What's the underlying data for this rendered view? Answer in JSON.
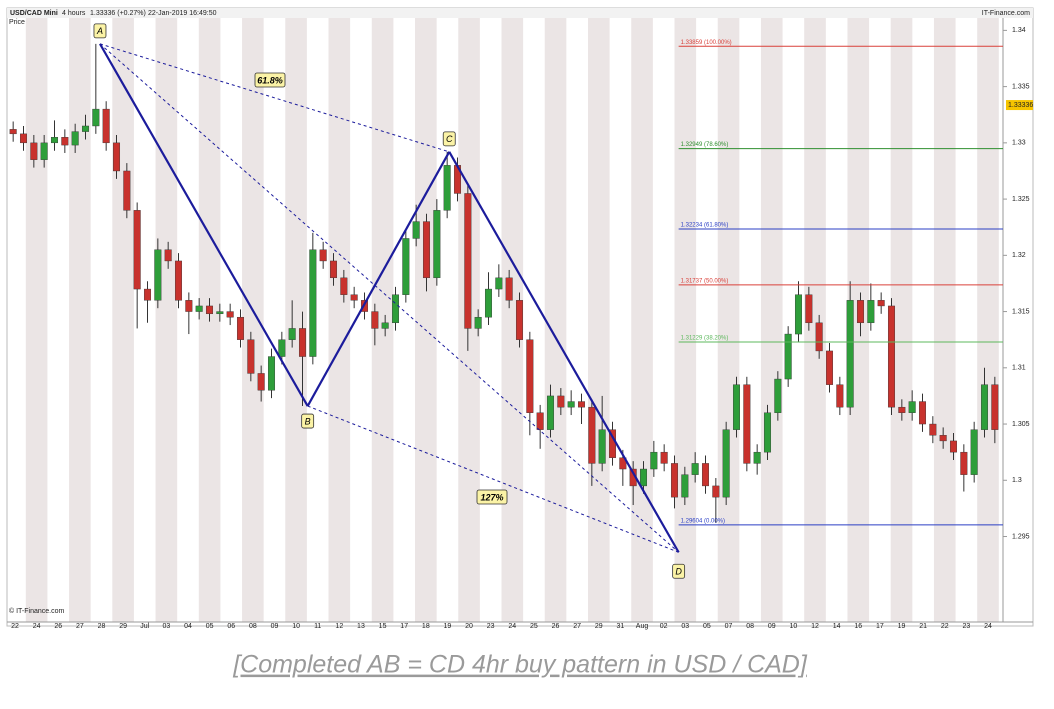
{
  "chart_data": {
    "type": "candlestick",
    "symbol": "USD/CAD Mini",
    "timeframe": "4 hours",
    "quote": "1.33336 (+0.27%)",
    "timestamp": "22-Jan-2019 16:49:50",
    "brand": "IT-Finance.com",
    "axis_title": "Price",
    "copyright": "© IT-Finance.com",
    "up_color": "#2e9e3a",
    "down_color": "#c8322d",
    "ylim": [
      1.2874,
      1.3411
    ],
    "yticks": [
      1.295,
      1.3,
      1.305,
      1.31,
      1.315,
      1.32,
      1.325,
      1.33,
      1.335,
      1.34
    ],
    "last_price": 1.33336,
    "xtick_labels": [
      "22",
      "24",
      "26",
      "27",
      "28",
      "29",
      "Jul",
      "03",
      "04",
      "05",
      "06",
      "08",
      "09",
      "10",
      "11",
      "12",
      "13",
      "15",
      "17",
      "18",
      "19",
      "20",
      "23",
      "24",
      "25",
      "26",
      "27",
      "29",
      "31",
      "Aug",
      "02",
      "03",
      "05",
      "07",
      "08",
      "09",
      "10",
      "12",
      "14",
      "16",
      "17",
      "19",
      "21",
      "22",
      "23",
      "24"
    ],
    "candles": {
      "open": [
        1.3312,
        1.3308,
        1.33,
        1.3285,
        1.33,
        1.3305,
        1.3298,
        1.331,
        1.3315,
        1.333,
        1.33,
        1.3275,
        1.324,
        1.317,
        1.316,
        1.3205,
        1.3195,
        1.316,
        1.315,
        1.3155,
        1.3148,
        1.315,
        1.3145,
        1.3125,
        1.3095,
        1.308,
        1.311,
        1.3125,
        1.3135,
        1.311,
        1.3205,
        1.3195,
        1.318,
        1.3165,
        1.316,
        1.315,
        1.3135,
        1.314,
        1.3165,
        1.3215,
        1.323,
        1.318,
        1.324,
        1.328,
        1.3255,
        1.3135,
        1.3145,
        1.317,
        1.318,
        1.316,
        1.3125,
        1.306,
        1.3045,
        1.3075,
        1.3065,
        1.307,
        1.3065,
        1.3015,
        1.3045,
        1.302,
        1.301,
        1.2995,
        1.301,
        1.3025,
        1.3015,
        1.2985,
        1.3005,
        1.3015,
        1.2995,
        1.2985,
        1.3045,
        1.3085,
        1.3015,
        1.3025,
        1.306,
        1.309,
        1.313,
        1.3165,
        1.314,
        1.3115,
        1.3085,
        1.3065,
        1.316,
        1.314,
        1.316,
        1.3155,
        1.3065,
        1.306,
        1.307,
        1.305,
        1.304,
        1.3035,
        1.3025,
        1.3005,
        1.3045,
        1.3085
      ],
      "high": [
        1.3319,
        1.3315,
        1.3307,
        1.3307,
        1.332,
        1.3312,
        1.3317,
        1.3325,
        1.3388,
        1.3337,
        1.3307,
        1.3282,
        1.3247,
        1.3177,
        1.3215,
        1.3212,
        1.3202,
        1.3167,
        1.3162,
        1.3162,
        1.3157,
        1.3157,
        1.3152,
        1.3132,
        1.3102,
        1.3117,
        1.3132,
        1.316,
        1.315,
        1.322,
        1.3212,
        1.3202,
        1.3187,
        1.3172,
        1.3167,
        1.3157,
        1.3147,
        1.3172,
        1.3222,
        1.3245,
        1.3237,
        1.325,
        1.3292,
        1.3287,
        1.3262,
        1.3152,
        1.3185,
        1.3192,
        1.3187,
        1.3167,
        1.3132,
        1.3067,
        1.3085,
        1.3082,
        1.308,
        1.3077,
        1.3072,
        1.3075,
        1.3052,
        1.3027,
        1.3017,
        1.3017,
        1.3035,
        1.3032,
        1.3022,
        1.3012,
        1.3025,
        1.3022,
        1.3002,
        1.3052,
        1.3092,
        1.3092,
        1.3032,
        1.3067,
        1.3097,
        1.3137,
        1.3177,
        1.3172,
        1.3147,
        1.3122,
        1.3092,
        1.3177,
        1.3167,
        1.3175,
        1.3167,
        1.3162,
        1.3072,
        1.308,
        1.3077,
        1.3057,
        1.3047,
        1.3042,
        1.3032,
        1.3052,
        1.31,
        1.3092
      ],
      "low": [
        1.3301,
        1.3293,
        1.3278,
        1.3278,
        1.3293,
        1.3291,
        1.3291,
        1.3303,
        1.3308,
        1.3293,
        1.3268,
        1.3233,
        1.3135,
        1.314,
        1.3153,
        1.3188,
        1.3153,
        1.313,
        1.3143,
        1.3141,
        1.3141,
        1.3138,
        1.3118,
        1.3088,
        1.307,
        1.3073,
        1.3103,
        1.3118,
        1.3066,
        1.3103,
        1.3188,
        1.3173,
        1.3158,
        1.3153,
        1.3143,
        1.312,
        1.3128,
        1.3133,
        1.3158,
        1.3208,
        1.3168,
        1.3173,
        1.3233,
        1.3248,
        1.3115,
        1.3128,
        1.3138,
        1.3163,
        1.3153,
        1.3118,
        1.304,
        1.3028,
        1.3038,
        1.3058,
        1.3058,
        1.305,
        1.2995,
        1.3008,
        1.3013,
        1.2995,
        1.2978,
        1.2988,
        1.3003,
        1.3008,
        1.2975,
        1.2978,
        1.2998,
        1.2988,
        1.2962,
        1.2978,
        1.3038,
        1.3008,
        1.3005,
        1.3018,
        1.3053,
        1.3083,
        1.3123,
        1.3133,
        1.3108,
        1.3078,
        1.3058,
        1.3058,
        1.3128,
        1.3133,
        1.3148,
        1.3058,
        1.3053,
        1.3053,
        1.3043,
        1.3033,
        1.3028,
        1.3018,
        1.299,
        1.2998,
        1.3038,
        1.3033
      ],
      "close": [
        1.3308,
        1.33,
        1.3285,
        1.33,
        1.3305,
        1.3298,
        1.331,
        1.3315,
        1.333,
        1.33,
        1.3275,
        1.324,
        1.317,
        1.316,
        1.3205,
        1.3195,
        1.316,
        1.315,
        1.3155,
        1.3148,
        1.315,
        1.3145,
        1.3125,
        1.3095,
        1.308,
        1.311,
        1.3125,
        1.3135,
        1.311,
        1.3205,
        1.3195,
        1.318,
        1.3165,
        1.316,
        1.315,
        1.3135,
        1.314,
        1.3165,
        1.3215,
        1.323,
        1.318,
        1.324,
        1.328,
        1.3255,
        1.3135,
        1.3145,
        1.317,
        1.318,
        1.316,
        1.3125,
        1.306,
        1.3045,
        1.3075,
        1.3065,
        1.307,
        1.3065,
        1.3015,
        1.3045,
        1.302,
        1.301,
        1.2995,
        1.301,
        1.3025,
        1.3015,
        1.2985,
        1.3005,
        1.3015,
        1.2995,
        1.2985,
        1.3045,
        1.3085,
        1.3015,
        1.3025,
        1.306,
        1.309,
        1.313,
        1.3165,
        1.314,
        1.3115,
        1.3085,
        1.3065,
        1.316,
        1.314,
        1.316,
        1.3155,
        1.3065,
        1.306,
        1.307,
        1.305,
        1.304,
        1.3035,
        1.3025,
        1.3005,
        1.3045,
        1.3085,
        1.3045
      ]
    },
    "fib_levels": [
      {
        "value": 1.33859,
        "label": "1.33859 (100.00%)",
        "color": "#d9403a"
      },
      {
        "value": 1.32949,
        "label": "1.32949 (78.60%)",
        "color": "#2f8f2f"
      },
      {
        "value": 1.32234,
        "label": "1.32234 (61.80%)",
        "color": "#2b3fc4"
      },
      {
        "value": 1.31737,
        "label": "1.31737 (50.00%)",
        "color": "#d9403a"
      },
      {
        "value": 1.31229,
        "label": "1.31229 (38.20%)",
        "color": "#5cb85c"
      },
      {
        "value": 1.29604,
        "label": "1.29604 (0.00%)",
        "color": "#2b3fc4"
      }
    ],
    "pattern": {
      "color": "#1c1c9c",
      "points": [
        {
          "label": "A",
          "x": 8.4,
          "y": 1.3388
        },
        {
          "label": "B",
          "x": 28.5,
          "y": 1.3066
        },
        {
          "label": "C",
          "x": 42.2,
          "y": 1.3292
        },
        {
          "label": "D",
          "x": 64.4,
          "y": 1.2936
        }
      ],
      "annotations": [
        "61.8%",
        "127%"
      ]
    }
  },
  "caption": "[Completed AB = CD 4hr buy pattern in USD / CAD]"
}
